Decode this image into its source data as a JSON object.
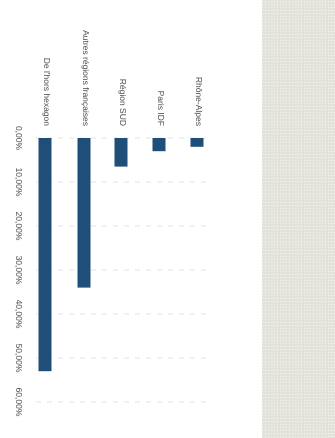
{
  "chart_data": {
    "type": "bar",
    "orientation": "horizontal",
    "rotation": "90deg-clockwise",
    "categories": [
      "Rhône-Alpes",
      "Paris IDF",
      "Région SUD",
      "Autres régions françaises",
      "De l'hors hexagon"
    ],
    "values": [
      2,
      3,
      6.5,
      34,
      53
    ],
    "xlim": [
      0,
      60
    ],
    "ticks": [
      "0,00%",
      "10,00%",
      "20,00%",
      "30,00%",
      "40,00%",
      "50,00%",
      "60,00%"
    ],
    "tick_values": [
      0,
      10,
      20,
      30,
      40,
      50,
      60
    ],
    "grid": true,
    "bar_color": "#1f4e79",
    "grid_color": "#e3e3e3"
  }
}
